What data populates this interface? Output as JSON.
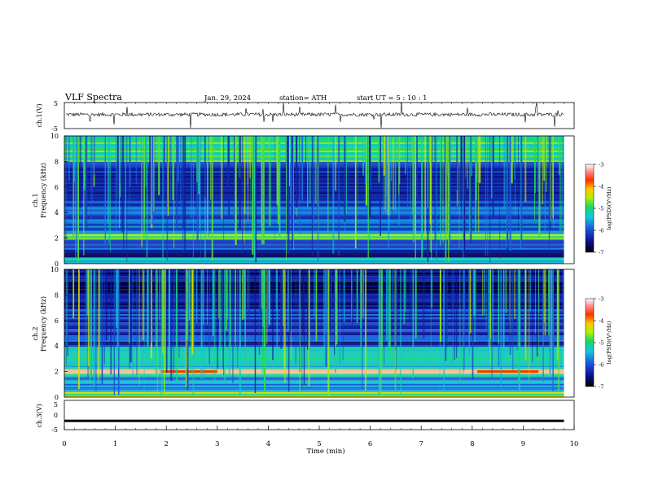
{
  "header": {
    "title": "VLF  Spectra",
    "date": "Jan. 29, 2024",
    "station": "station= ATH",
    "start": "start  UT  =   5  : 10 : 1"
  },
  "chart_data": [
    {
      "type": "line",
      "name": "ch1-waveform",
      "ylabel": "ch.1(V)",
      "ylim": [
        -5,
        5
      ],
      "yticks": [
        "5",
        "-5"
      ],
      "xlim": [
        0,
        10
      ],
      "approx_baseline_volts": 0.4,
      "approx_noise_amplitude_volts": 1.0
    },
    {
      "type": "heatmap",
      "name": "ch1-spectrogram",
      "ylabel_top": "ch.1",
      "ylabel": "Frequency  (kHz)",
      "ylim": [
        0,
        10
      ],
      "yticks": [
        "0",
        "2",
        "4",
        "6",
        "8",
        "10"
      ],
      "xlim": [
        0,
        9.8
      ],
      "colorbar": {
        "label": "log(PSD)(V²/Hz)",
        "range": [
          -7,
          -3
        ],
        "ticks": [
          "-3",
          "-4",
          "-5",
          "-6",
          "-7"
        ]
      },
      "band_levels_log_psd": [
        {
          "freq_khz": [
            0,
            0.5
          ],
          "level": -5.2
        },
        {
          "freq_khz": [
            0.5,
            1.0
          ],
          "level": -6.4
        },
        {
          "freq_khz": [
            1.0,
            2.0
          ],
          "level": -6.0
        },
        {
          "freq_khz": [
            2.0,
            2.4
          ],
          "level": -4.9
        },
        {
          "freq_khz": [
            2.4,
            5.0
          ],
          "level": -6.0
        },
        {
          "freq_khz": [
            5.0,
            8.0
          ],
          "level": -6.3
        },
        {
          "freq_khz": [
            8.0,
            10.0
          ],
          "level": -5.0
        }
      ]
    },
    {
      "type": "heatmap",
      "name": "ch2-spectrogram",
      "ylabel_top": "ch.2",
      "ylabel": "Frequency  (kHz)",
      "ylim": [
        0,
        10
      ],
      "yticks": [
        "0",
        "2",
        "4",
        "6",
        "8",
        "10"
      ],
      "xlim": [
        0,
        9.8
      ],
      "colorbar": {
        "label": "log(PSD)(V²/Hz)",
        "range": [
          -7,
          -3
        ],
        "ticks": [
          "-3",
          "-4",
          "-5",
          "-6",
          "-7"
        ]
      },
      "band_levels_log_psd": [
        {
          "freq_khz": [
            0,
            0.5
          ],
          "level": -4.6
        },
        {
          "freq_khz": [
            0.5,
            1.8
          ],
          "level": -5.6
        },
        {
          "freq_khz": [
            1.8,
            2.3
          ],
          "level": -4.2
        },
        {
          "freq_khz": [
            2.3,
            4.0
          ],
          "level": -5.2
        },
        {
          "freq_khz": [
            4.0,
            7.0
          ],
          "level": -6.2
        },
        {
          "freq_khz": [
            7.0,
            10.0
          ],
          "level": -6.6
        }
      ],
      "strong_line": {
        "freq_khz": 2.0,
        "level": -3.7,
        "t_min": [
          [
            1.9,
            3.0
          ],
          [
            8.1,
            9.3
          ]
        ]
      }
    },
    {
      "type": "line",
      "name": "ch3-waveform",
      "ylabel": "ch.3(V)",
      "ylim": [
        -5,
        5
      ],
      "yticks": [
        "5",
        "0",
        "-5"
      ],
      "xlim": [
        0,
        10
      ],
      "xlabel": "Time  (min)",
      "xticks": [
        "0",
        "1",
        "2",
        "3",
        "4",
        "5",
        "6",
        "7",
        "8",
        "9",
        "10"
      ],
      "approx_level_volts": -2
    }
  ]
}
